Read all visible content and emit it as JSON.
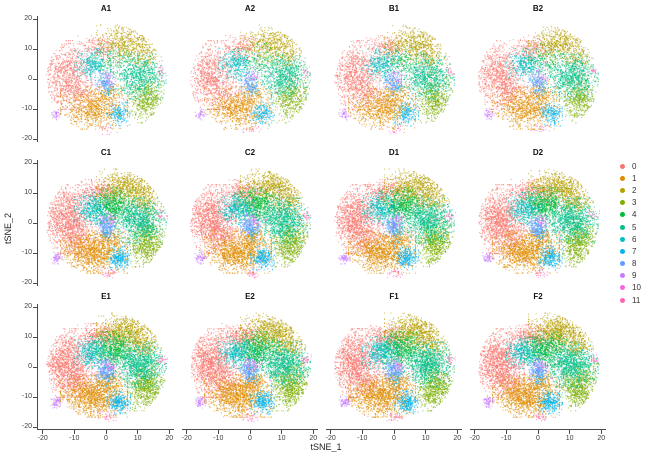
{
  "figure": {
    "background": "#ffffff"
  },
  "chart_data": {
    "type": "scatter",
    "description": "Grid of 12 t-SNE scatter plots (samples A1-F2); points colored by cluster identity 0-11",
    "xlabel": "tSNE_1",
    "ylabel": "tSNE_2",
    "xlim": [
      -21.5,
      21.5
    ],
    "ylim": [
      -21,
      21
    ],
    "xticks": [
      -20,
      -10,
      0,
      10,
      20
    ],
    "yticks": [
      20,
      10,
      0,
      -10,
      -20
    ],
    "grid": false,
    "legend": {
      "position": "right-center",
      "items": [
        {
          "label": "0",
          "color": "#F8766D"
        },
        {
          "label": "1",
          "color": "#DE8C00"
        },
        {
          "label": "2",
          "color": "#B79F00"
        },
        {
          "label": "3",
          "color": "#7CAE00"
        },
        {
          "label": "4",
          "color": "#00BA38"
        },
        {
          "label": "5",
          "color": "#00C08B"
        },
        {
          "label": "6",
          "color": "#00BFC4"
        },
        {
          "label": "7",
          "color": "#00B4F0"
        },
        {
          "label": "8",
          "color": "#619CFF"
        },
        {
          "label": "9",
          "color": "#C77CFF"
        },
        {
          "label": "10",
          "color": "#F564E3"
        },
        {
          "label": "11",
          "color": "#FF64B0"
        }
      ]
    },
    "panels": [
      {
        "id": "A1",
        "density": 0.68,
        "cluster_scale": {
          "4": 0.35,
          "5": 1.1,
          "6": 1.15
        }
      },
      {
        "id": "A2",
        "density": 0.68,
        "cluster_scale": {
          "4": 0.35,
          "5": 1.1,
          "6": 1.15
        }
      },
      {
        "id": "B1",
        "density": 0.72,
        "cluster_scale": {
          "4": 0.45,
          "5": 1.1,
          "6": 1.1
        }
      },
      {
        "id": "B2",
        "density": 0.72,
        "cluster_scale": {
          "4": 0.45,
          "5": 1.1,
          "6": 1.1
        }
      },
      {
        "id": "C1",
        "density": 1.0,
        "cluster_scale": {}
      },
      {
        "id": "C2",
        "density": 1.0,
        "cluster_scale": {}
      },
      {
        "id": "D1",
        "density": 1.0,
        "cluster_scale": {}
      },
      {
        "id": "D2",
        "density": 1.0,
        "cluster_scale": {}
      },
      {
        "id": "E1",
        "density": 1.05,
        "cluster_scale": {}
      },
      {
        "id": "E2",
        "density": 1.05,
        "cluster_scale": {}
      },
      {
        "id": "F1",
        "density": 1.05,
        "cluster_scale": {}
      },
      {
        "id": "F2",
        "density": 1.05,
        "cluster_scale": {}
      }
    ],
    "clusters": [
      {
        "label": "0",
        "components": [
          {
            "cx": -12.5,
            "cy": 1.5,
            "sx": 3.6,
            "sy": 5.2,
            "n": 1350
          },
          {
            "cx": -2.5,
            "cy": 10.5,
            "sx": 3.0,
            "sy": 1.9,
            "n": 320
          },
          {
            "cx": -8.5,
            "cy": -4.5,
            "sx": 2.5,
            "sy": 2.5,
            "n": 200
          }
        ]
      },
      {
        "label": "1",
        "components": [
          {
            "cx": -4,
            "cy": -9.5,
            "sx": 4.8,
            "sy": 3.2,
            "n": 1250
          },
          {
            "cx": 1,
            "cy": -4.5,
            "sx": 2.2,
            "sy": 1.8,
            "n": 180
          }
        ]
      },
      {
        "label": "2",
        "components": [
          {
            "cx": 6.5,
            "cy": 12,
            "sx": 4.4,
            "sy": 2.8,
            "n": 850
          },
          {
            "cx": 12,
            "cy": 7,
            "sx": 2.4,
            "sy": 2.2,
            "n": 220
          }
        ]
      },
      {
        "label": "3",
        "components": [
          {
            "cx": 12.8,
            "cy": -6.5,
            "sx": 2.8,
            "sy": 3.6,
            "n": 800
          }
        ]
      },
      {
        "label": "4",
        "components": [
          {
            "cx": 1.8,
            "cy": 6,
            "sx": 3.3,
            "sy": 2.7,
            "n": 720
          }
        ]
      },
      {
        "label": "5",
        "components": [
          {
            "cx": 10.5,
            "cy": 1,
            "sx": 3.8,
            "sy": 3.4,
            "n": 1050
          }
        ]
      },
      {
        "label": "6",
        "components": [
          {
            "cx": -4.5,
            "cy": 5,
            "sx": 2.6,
            "sy": 2.4,
            "n": 430
          }
        ]
      },
      {
        "label": "7",
        "components": [
          {
            "cx": 3.8,
            "cy": -11.5,
            "sx": 1.7,
            "sy": 1.8,
            "n": 280
          },
          {
            "cx": 0.5,
            "cy": -3,
            "sx": 1.0,
            "sy": 1.6,
            "n": 60
          }
        ]
      },
      {
        "label": "8",
        "components": [
          {
            "cx": -0.5,
            "cy": -1,
            "sx": 1.4,
            "sy": 1.7,
            "n": 210
          }
        ]
      },
      {
        "label": "9",
        "components": [
          {
            "cx": -15.8,
            "cy": -11.5,
            "sx": 0.8,
            "sy": 0.9,
            "n": 70,
            "clip": false
          },
          {
            "cx": 0.5,
            "cy": 1.5,
            "sx": 1.2,
            "sy": 1.2,
            "n": 40
          }
        ]
      },
      {
        "label": "10",
        "components": [
          {
            "cx": 0,
            "cy": 1,
            "sx": 7.0,
            "sy": 6.0,
            "n": 30
          },
          {
            "cx": 1.5,
            "cy": 0.5,
            "sx": 0.8,
            "sy": 0.8,
            "n": 15
          }
        ]
      },
      {
        "label": "11",
        "components": [
          {
            "cx": 17.5,
            "cy": 2.5,
            "sx": 0.8,
            "sy": 0.8,
            "n": 25,
            "clip": false
          },
          {
            "cx": 0.5,
            "cy": -16.5,
            "sx": 1.3,
            "sy": 0.8,
            "n": 30,
            "clip": false
          },
          {
            "cx": -3,
            "cy": -1,
            "sx": 8.0,
            "sy": 7.0,
            "n": 20
          }
        ]
      }
    ]
  }
}
